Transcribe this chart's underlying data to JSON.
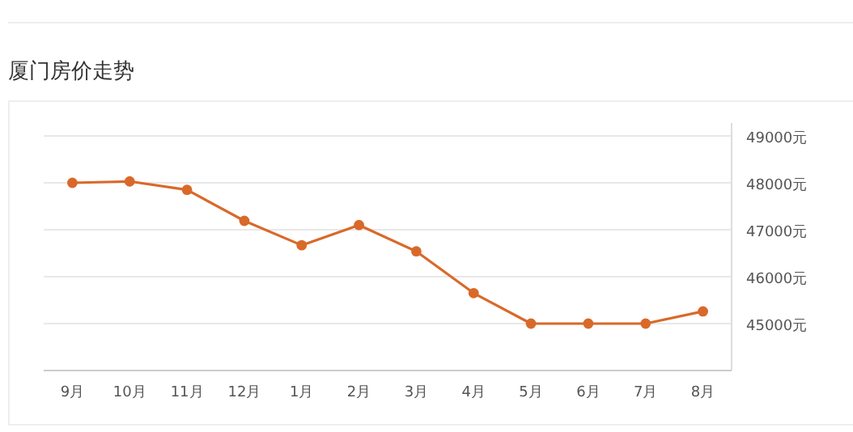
{
  "chart_data": {
    "type": "line",
    "title": "厦门房价走势",
    "categories": [
      "9月",
      "10月",
      "11月",
      "12月",
      "1月",
      "2月",
      "3月",
      "4月",
      "5月",
      "6月",
      "7月",
      "8月"
    ],
    "series": [
      {
        "color": "#d9692a",
        "values": [
          48000,
          48030,
          47850,
          47190,
          46670,
          47100,
          46540,
          45650,
          45000,
          45000,
          45000,
          45260
        ]
      }
    ],
    "ylim": [
      44000,
      49000
    ],
    "yticks": [
      {
        "value": 45000,
        "label": "45000元"
      },
      {
        "value": 46000,
        "label": "46000元"
      },
      {
        "value": 47000,
        "label": "47000元"
      },
      {
        "value": 48000,
        "label": "48000元"
      },
      {
        "value": 49000,
        "label": "49000元"
      }
    ],
    "grid": "y",
    "marker": "circle"
  }
}
